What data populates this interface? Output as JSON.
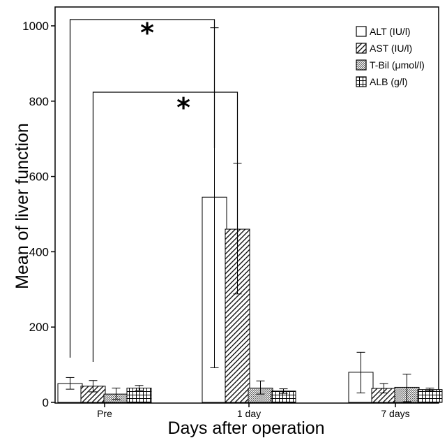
{
  "chart_data": {
    "type": "bar",
    "xlabel": "Days after operation",
    "ylabel": "Mean of liver function",
    "ylim": [
      0,
      1050
    ],
    "yticks": [
      "0",
      "200",
      "400",
      "600",
      "800",
      "1000"
    ],
    "categories": [
      "Pre",
      "1 day",
      "7 days"
    ],
    "series": [
      {
        "name": "ALT (IU/l)",
        "pattern": "empty",
        "values": [
          50,
          545,
          80
        ],
        "err_low": [
          35,
          92,
          25
        ],
        "err_high": [
          66,
          995,
          133
        ]
      },
      {
        "name": "AST (IU/l)",
        "pattern": "diagonal-hatch",
        "values": [
          43,
          460,
          37
        ],
        "err_low": [
          28,
          288,
          25
        ],
        "err_high": [
          58,
          635,
          50
        ]
      },
      {
        "name": "T-Bil (μmol/l)",
        "pattern": "dots",
        "values": [
          22,
          38,
          40
        ],
        "err_low": [
          8,
          22,
          2
        ],
        "err_high": [
          38,
          57,
          75
        ]
      },
      {
        "name": "ALB (g/l)",
        "pattern": "grid",
        "values": [
          38,
          30,
          34
        ],
        "err_low": [
          32,
          24,
          31
        ],
        "err_high": [
          45,
          36,
          38
        ]
      }
    ],
    "annotations": [
      {
        "text": "*",
        "from": {
          "category": "Pre",
          "series": "ALT (IU/l)"
        },
        "to": {
          "category": "1 day",
          "series": "ALT (IU/l)"
        }
      },
      {
        "text": "*",
        "from": {
          "category": "Pre",
          "series": "AST (IU/l)"
        },
        "to": {
          "category": "1 day",
          "series": "AST (IU/l)"
        }
      }
    ],
    "legend_position": "top-right",
    "grid": false
  }
}
